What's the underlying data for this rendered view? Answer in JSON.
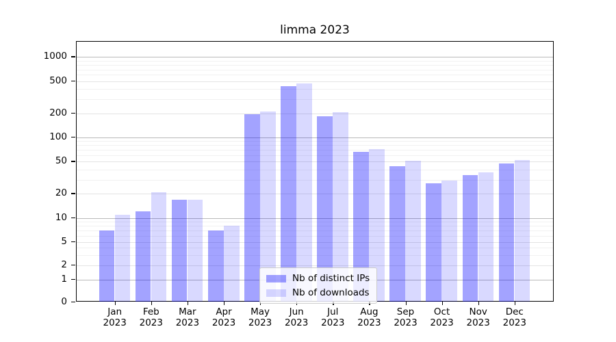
{
  "title": "limma 2023",
  "chart_data": {
    "type": "bar",
    "title": "limma 2023",
    "categories": [
      "Jan 2023",
      "Feb 2023",
      "Mar 2023",
      "Apr 2023",
      "May 2023",
      "Jun 2023",
      "Jul 2023",
      "Aug 2023",
      "Sep 2023",
      "Oct 2023",
      "Nov 2023",
      "Dec 2023"
    ],
    "series": [
      {
        "name": "Nb of distinct IPs",
        "color": "#0000ff5c",
        "values": [
          7,
          12,
          17,
          7,
          195,
          430,
          185,
          67,
          44,
          27,
          34,
          48
        ]
      },
      {
        "name": "Nb of downloads",
        "color": "#0000ff26",
        "values": [
          11,
          21,
          17,
          8,
          210,
          470,
          205,
          72,
          51,
          29,
          37,
          53
        ]
      }
    ],
    "yticks": [
      1000,
      500,
      200,
      100,
      50,
      20,
      10,
      5,
      2,
      1,
      0
    ],
    "yscale": "log-with-zero",
    "ylim": [
      0,
      1500
    ],
    "grid": true,
    "legend_position": "bottom-center",
    "legend_entries": [
      "Nb of distinct IPs",
      "Nb of downloads"
    ]
  }
}
